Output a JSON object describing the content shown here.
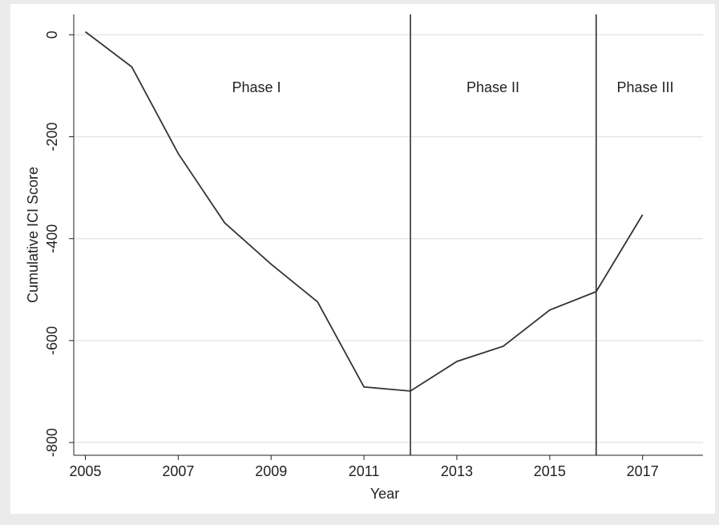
{
  "chart_data": {
    "type": "line",
    "x_label": "Year",
    "y_label": "Cumulative ICI Score",
    "x": [
      2005,
      2006,
      2007,
      2008,
      2009,
      2010,
      2011,
      2012,
      2013,
      2014,
      2015,
      2016,
      2017
    ],
    "series": [
      {
        "color": "#333333",
        "values": [
          6,
          -63,
          -233,
          -369,
          -450,
          -524,
          -691,
          -699,
          -641,
          -611,
          -540,
          -504,
          -353
        ]
      }
    ],
    "xlim": [
      2004.75,
      2018.3
    ],
    "ylim": [
      -825,
      40
    ],
    "xticks": [
      2005,
      2007,
      2009,
      2011,
      2013,
      2015,
      2017
    ],
    "yticks": [
      0,
      -200,
      -400,
      -600,
      -800
    ],
    "vlines": [
      2012,
      2016
    ],
    "annotations": [
      "Phase I",
      "Phase II",
      "Phase III"
    ],
    "grid": true
  }
}
